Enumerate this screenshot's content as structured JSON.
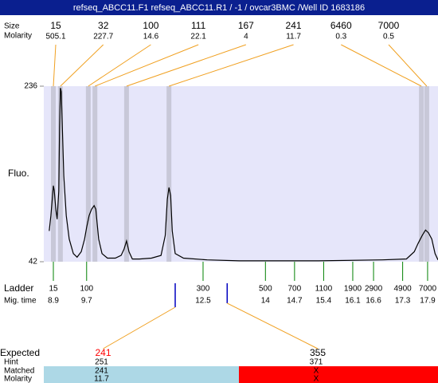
{
  "chart_data": {
    "type": "line",
    "header": "refseq_ABCC11.F1  refseq_ABCC11.R1 / -1 / ovcar3BMC  /Well ID 1683186",
    "ylabel": "Fluo.",
    "ylim": [
      42,
      236
    ],
    "yticks": [
      42,
      236
    ],
    "xlim": [
      8.67,
      18.15
    ],
    "color": "#000000",
    "x": [
      8.8,
      8.84,
      8.88,
      8.9,
      8.92,
      8.96,
      8.99,
      9.03,
      9.05,
      9.07,
      9.09,
      9.11,
      9.15,
      9.21,
      9.28,
      9.38,
      9.47,
      9.57,
      9.65,
      9.7,
      9.76,
      9.82,
      9.88,
      9.92,
      9.95,
      9.99,
      10.07,
      10.2,
      10.39,
      10.53,
      10.6,
      10.66,
      10.72,
      10.8,
      10.97,
      11.26,
      11.49,
      11.59,
      11.64,
      11.68,
      11.72,
      11.76,
      11.83,
      12.03,
      12.6,
      13.37,
      15.28,
      16.81,
      17.39,
      17.58,
      17.67,
      17.77,
      17.85,
      17.92,
      18.0,
      18.08,
      18.15
    ],
    "values": [
      76,
      93,
      115,
      126,
      121,
      100,
      89,
      120,
      190,
      234,
      230,
      199,
      137,
      93,
      67,
      51,
      47,
      53,
      67,
      80,
      93,
      100,
      104,
      100,
      86,
      67,
      51,
      46,
      46,
      49,
      56,
      65,
      53,
      45,
      45,
      46,
      49,
      71,
      111,
      124,
      115,
      76,
      51,
      46,
      44,
      43,
      43,
      44,
      45,
      53,
      62,
      71,
      77,
      74,
      67,
      51,
      44
    ],
    "peaks": {
      "size_label": "Size",
      "molarity_label": "Molarity",
      "sizes": [
        15,
        32,
        100,
        111,
        167,
        241,
        6460,
        7000
      ],
      "molarities": [
        505.1,
        227.7,
        14.6,
        22.1,
        4,
        11.7,
        0.3,
        0.5
      ],
      "times": [
        8.9,
        9.07,
        9.74,
        9.9,
        10.66,
        11.68,
        17.75,
        17.88
      ],
      "band_color": "#c8c8d8",
      "line_color": "#f0a020"
    },
    "ladder": {
      "label": "Ladder",
      "time_label": "Mig. time",
      "sizes": [
        15,
        100,
        300,
        500,
        700,
        1100,
        1900,
        2900,
        4900,
        7000
      ],
      "mig_times": [
        8.9,
        9.7,
        12.5,
        14,
        14.7,
        15.4,
        16.1,
        16.6,
        17.3,
        17.9
      ],
      "color": "#008000"
    },
    "expected": {
      "label": "Expected",
      "hint_label": "Hint",
      "matched_label": "Matched",
      "molarity_label": "Molarity",
      "marker_color": "#0000c0",
      "items": [
        {
          "size": 241,
          "hint": 251,
          "matched": 241,
          "molarity": 11.7,
          "mig_time": 11.83,
          "text_color": "#ff0000",
          "fill": "#add8e6"
        },
        {
          "size": 355,
          "hint": 371,
          "matched": "X",
          "molarity": "X",
          "mig_time": 13.08,
          "text_color": "#000000",
          "fill": "#ff0000"
        }
      ]
    }
  }
}
